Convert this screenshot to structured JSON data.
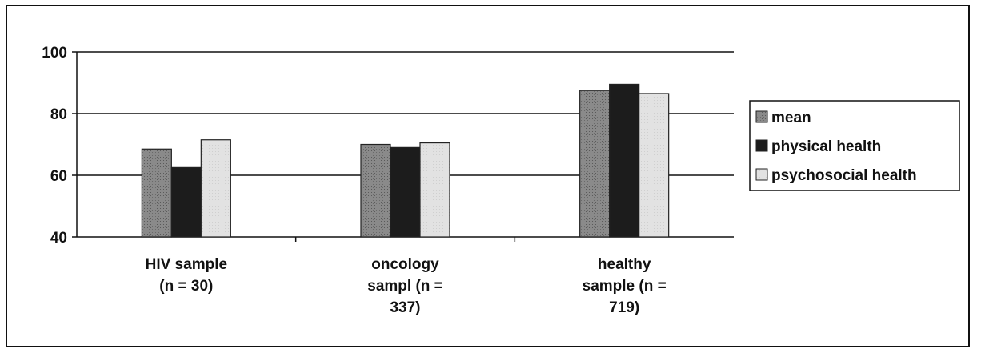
{
  "chart_data": {
    "type": "bar",
    "title": "",
    "xlabel": "",
    "ylabel": "",
    "ylim": [
      40,
      100
    ],
    "yticks": [
      40,
      60,
      80,
      100
    ],
    "grid": true,
    "legend_position": "right",
    "categories": [
      [
        "HIV sample",
        "(n = 30)"
      ],
      [
        "oncology",
        "sampl (n =",
        "337)"
      ],
      [
        "healthy",
        "sample (n =",
        "719)"
      ]
    ],
    "series": [
      {
        "name": "mean",
        "values": [
          68.5,
          70,
          87.5
        ],
        "color": "#7a7a7a",
        "pattern": "dotted-gray"
      },
      {
        "name": "physical health",
        "values": [
          62.5,
          69,
          89.5
        ],
        "color": "#1a1a1a",
        "pattern": "solid-dark"
      },
      {
        "name": "psychosocial health",
        "values": [
          71.5,
          70.5,
          86.5
        ],
        "color": "#d8d8d8",
        "pattern": "light"
      }
    ]
  }
}
